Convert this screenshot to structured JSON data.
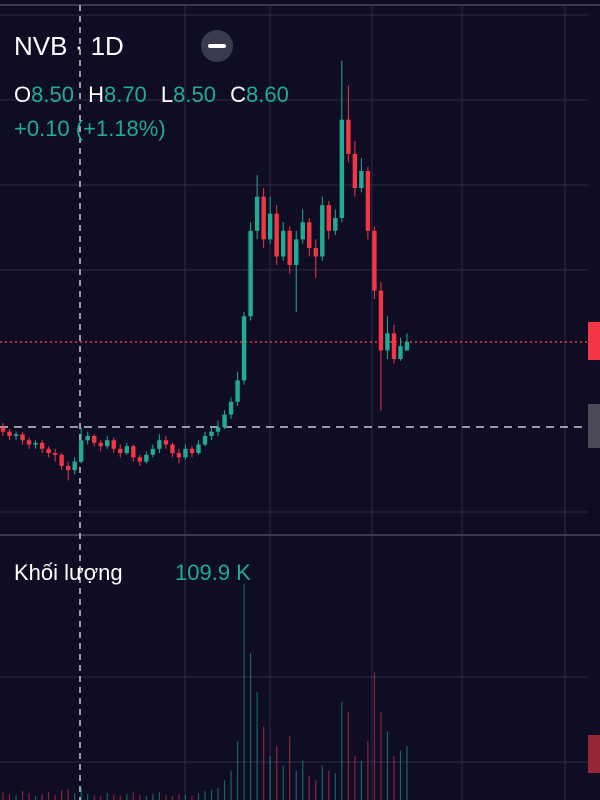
{
  "chart_data": {
    "type": "candlestick",
    "title": "NVB · 1D",
    "ohlc_header": {
      "o_label": "O",
      "o": "8.50",
      "h_label": "H",
      "h": "8.70",
      "l_label": "L",
      "l": "8.50",
      "c_label": "C",
      "c": "8.60",
      "change": "+0.10 (+1.18%)"
    },
    "up_color": "#22ab94",
    "down_color": "#f23645",
    "ylim": [
      6.4,
      12.6
    ],
    "open": [
      7.6,
      7.55,
      7.5,
      7.52,
      7.45,
      7.4,
      7.42,
      7.35,
      7.3,
      7.28,
      7.15,
      7.1,
      7.2,
      7.45,
      7.5,
      7.42,
      7.38,
      7.45,
      7.35,
      7.3,
      7.38,
      7.25,
      7.2,
      7.28,
      7.35,
      7.45,
      7.4,
      7.3,
      7.25,
      7.35,
      7.3,
      7.4,
      7.5,
      7.55,
      7.6,
      7.75,
      7.9,
      8.15,
      8.9,
      9.9,
      10.3,
      9.8,
      10.1,
      9.6,
      9.9,
      9.5,
      9.8,
      10.0,
      9.7,
      9.6,
      10.2,
      9.9,
      10.05,
      11.2,
      10.8,
      10.4,
      10.6,
      9.9,
      9.2,
      8.5,
      8.7,
      8.4,
      8.5
    ],
    "high": [
      7.65,
      7.58,
      7.55,
      7.55,
      7.48,
      7.45,
      7.45,
      7.38,
      7.35,
      7.3,
      7.2,
      7.25,
      7.6,
      7.55,
      7.52,
      7.45,
      7.5,
      7.48,
      7.4,
      7.42,
      7.4,
      7.28,
      7.32,
      7.4,
      7.52,
      7.5,
      7.42,
      7.35,
      7.4,
      7.38,
      7.45,
      7.55,
      7.6,
      7.68,
      7.8,
      7.95,
      8.25,
      8.95,
      10.0,
      10.55,
      10.4,
      10.3,
      10.2,
      10.0,
      9.95,
      9.9,
      10.15,
      10.05,
      9.8,
      10.3,
      10.25,
      10.15,
      11.89,
      11.6,
      10.95,
      10.75,
      10.65,
      9.95,
      9.3,
      8.9,
      8.8,
      8.65,
      8.7
    ],
    "low": [
      7.5,
      7.45,
      7.45,
      7.4,
      7.35,
      7.35,
      7.3,
      7.25,
      7.2,
      7.1,
      6.98,
      7.05,
      7.18,
      7.4,
      7.38,
      7.32,
      7.35,
      7.3,
      7.25,
      7.28,
      7.2,
      7.15,
      7.18,
      7.25,
      7.3,
      7.35,
      7.25,
      7.18,
      7.22,
      7.25,
      7.28,
      7.38,
      7.45,
      7.5,
      7.58,
      7.7,
      7.85,
      8.1,
      8.85,
      9.8,
      9.7,
      9.75,
      9.5,
      9.55,
      9.4,
      8.95,
      9.75,
      9.6,
      9.35,
      9.55,
      9.8,
      9.85,
      10.0,
      10.7,
      10.3,
      10.35,
      9.8,
      9.1,
      7.8,
      8.4,
      8.35,
      8.38,
      8.5
    ],
    "close": [
      7.55,
      7.5,
      7.52,
      7.45,
      7.4,
      7.42,
      7.35,
      7.3,
      7.28,
      7.15,
      7.1,
      7.2,
      7.45,
      7.5,
      7.42,
      7.38,
      7.45,
      7.35,
      7.3,
      7.38,
      7.25,
      7.2,
      7.28,
      7.35,
      7.45,
      7.4,
      7.3,
      7.25,
      7.35,
      7.3,
      7.4,
      7.5,
      7.55,
      7.6,
      7.75,
      7.9,
      8.15,
      8.9,
      9.9,
      10.3,
      9.8,
      10.1,
      9.6,
      9.9,
      9.5,
      9.8,
      10.0,
      9.7,
      9.6,
      10.2,
      9.9,
      10.05,
      11.2,
      10.8,
      10.4,
      10.6,
      9.9,
      9.2,
      8.5,
      8.7,
      8.4,
      8.55,
      8.6
    ],
    "volume": {
      "title": "Khối lượng",
      "last_label": "109.9 K",
      "ylim": [
        0,
        520
      ],
      "values": [
        15,
        12,
        10,
        18,
        14,
        8,
        12,
        16,
        10,
        20,
        22,
        14,
        25,
        12,
        10,
        8,
        14,
        10,
        9,
        12,
        15,
        10,
        8,
        12,
        16,
        10,
        8,
        12,
        10,
        9,
        14,
        18,
        20,
        25,
        40,
        60,
        120,
        440,
        300,
        220,
        150,
        90,
        110,
        70,
        130,
        60,
        80,
        50,
        40,
        70,
        60,
        55,
        200,
        180,
        90,
        80,
        120,
        260,
        180,
        140,
        90,
        100,
        109.9
      ]
    }
  }
}
